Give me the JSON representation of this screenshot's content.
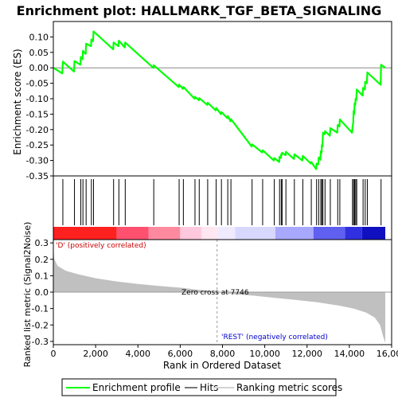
{
  "chart_data": {
    "type": "line",
    "title": "Enrichment plot: HALLMARK_TGF_BETA_SIGNALING",
    "ylabel_top": "Enrichment score (ES)",
    "ylabel_bottom": "Ranked list metric (Signal2Noise)",
    "xlabel": "Rank in Ordered Dataset",
    "xlim": [
      0,
      16000
    ],
    "x_ticks": [
      0,
      2000,
      4000,
      6000,
      8000,
      10000,
      12000,
      14000,
      16000
    ],
    "x_tick_labels": [
      "0",
      "2,000",
      "4,000",
      "6,000",
      "8,000",
      "10,000",
      "12,000",
      "14,000",
      "16,000"
    ],
    "es_ylim": [
      -0.35,
      0.15
    ],
    "es_ticks": [
      0.1,
      0.05,
      0.0,
      -0.05,
      -0.1,
      -0.15,
      -0.2,
      -0.25,
      -0.3,
      -0.35
    ],
    "es_tick_labels": [
      "0.10",
      "0.05",
      "0.00",
      "-0.05",
      "-0.10",
      "-0.15",
      "-0.20",
      "-0.25",
      "-0.30",
      "-0.35"
    ],
    "metric_ylim": [
      -0.32,
      0.32
    ],
    "metric_ticks": [
      0.3,
      0.2,
      0.1,
      0.0,
      -0.1,
      -0.2,
      -0.3
    ],
    "metric_tick_labels": [
      "0.3",
      "0.2",
      "0.1",
      "0.0",
      "-0.1",
      "-0.2",
      "-0.3"
    ],
    "hits": [
      450,
      1000,
      1300,
      1400,
      1550,
      1800,
      1900,
      2850,
      3100,
      3400,
      4750,
      5950,
      6150,
      6700,
      6900,
      7300,
      7700,
      7950,
      8250,
      8400,
      9400,
      9900,
      10450,
      10700,
      10780,
      10820,
      11000,
      11400,
      11800,
      12200,
      12450,
      12550,
      12650,
      12700,
      12750,
      12850,
      13100,
      13450,
      13550,
      14150,
      14200,
      14250,
      14300,
      14350,
      14650,
      14750,
      14850,
      15500
    ],
    "es_curve": [
      [
        0,
        0.0
      ],
      [
        420,
        -0.018
      ],
      [
        450,
        0.02
      ],
      [
        980,
        -0.012
      ],
      [
        1000,
        0.022
      ],
      [
        1280,
        0.01
      ],
      [
        1300,
        0.035
      ],
      [
        1380,
        0.028
      ],
      [
        1400,
        0.055
      ],
      [
        1530,
        0.045
      ],
      [
        1550,
        0.078
      ],
      [
        1780,
        0.07
      ],
      [
        1800,
        0.092
      ],
      [
        1880,
        0.086
      ],
      [
        1900,
        0.118
      ],
      [
        2830,
        0.06
      ],
      [
        2850,
        0.082
      ],
      [
        3080,
        0.07
      ],
      [
        3100,
        0.088
      ],
      [
        3380,
        0.066
      ],
      [
        3400,
        0.082
      ],
      [
        4730,
        0.0
      ],
      [
        4750,
        0.008
      ],
      [
        5930,
        -0.062
      ],
      [
        5950,
        -0.054
      ],
      [
        6130,
        -0.068
      ],
      [
        6150,
        -0.062
      ],
      [
        6680,
        -0.1
      ],
      [
        6700,
        -0.094
      ],
      [
        6880,
        -0.105
      ],
      [
        6900,
        -0.098
      ],
      [
        7280,
        -0.12
      ],
      [
        7300,
        -0.113
      ],
      [
        7680,
        -0.138
      ],
      [
        7700,
        -0.13
      ],
      [
        7930,
        -0.15
      ],
      [
        7950,
        -0.143
      ],
      [
        8230,
        -0.163
      ],
      [
        8250,
        -0.156
      ],
      [
        8380,
        -0.173
      ],
      [
        8400,
        -0.166
      ],
      [
        9380,
        -0.255
      ],
      [
        9400,
        -0.248
      ],
      [
        9880,
        -0.274
      ],
      [
        9900,
        -0.267
      ],
      [
        10430,
        -0.3
      ],
      [
        10450,
        -0.292
      ],
      [
        10680,
        -0.305
      ],
      [
        10700,
        -0.288
      ],
      [
        10760,
        -0.292
      ],
      [
        10780,
        -0.28
      ],
      [
        10800,
        -0.283
      ],
      [
        10820,
        -0.275
      ],
      [
        10980,
        -0.283
      ],
      [
        11000,
        -0.272
      ],
      [
        11380,
        -0.295
      ],
      [
        11400,
        -0.28
      ],
      [
        11780,
        -0.3
      ],
      [
        11800,
        -0.285
      ],
      [
        12180,
        -0.31
      ],
      [
        12200,
        -0.305
      ],
      [
        12430,
        -0.328
      ],
      [
        12450,
        -0.31
      ],
      [
        12530,
        -0.313
      ],
      [
        12550,
        -0.29
      ],
      [
        12630,
        -0.298
      ],
      [
        12650,
        -0.27
      ],
      [
        12690,
        -0.275
      ],
      [
        12700,
        -0.25
      ],
      [
        12730,
        -0.255
      ],
      [
        12750,
        -0.21
      ],
      [
        12830,
        -0.215
      ],
      [
        12850,
        -0.205
      ],
      [
        13080,
        -0.22
      ],
      [
        13100,
        -0.195
      ],
      [
        13430,
        -0.21
      ],
      [
        13450,
        -0.185
      ],
      [
        13530,
        -0.19
      ],
      [
        13550,
        -0.167
      ],
      [
        14130,
        -0.21
      ],
      [
        14150,
        -0.19
      ],
      [
        14180,
        -0.18
      ],
      [
        14200,
        -0.14
      ],
      [
        14230,
        -0.15
      ],
      [
        14250,
        -0.115
      ],
      [
        14280,
        -0.12
      ],
      [
        14300,
        -0.1
      ],
      [
        14330,
        -0.105
      ],
      [
        14350,
        -0.07
      ],
      [
        14630,
        -0.09
      ],
      [
        14650,
        -0.065
      ],
      [
        14730,
        -0.07
      ],
      [
        14750,
        -0.045
      ],
      [
        14830,
        -0.05
      ],
      [
        14850,
        -0.015
      ],
      [
        15480,
        -0.055
      ],
      [
        15500,
        0.01
      ],
      [
        15700,
        0.0
      ]
    ],
    "metric_curve": [
      [
        0,
        0.26
      ],
      [
        50,
        0.2
      ],
      [
        200,
        0.16
      ],
      [
        600,
        0.13
      ],
      [
        1200,
        0.108
      ],
      [
        2000,
        0.085
      ],
      [
        3000,
        0.065
      ],
      [
        4000,
        0.05
      ],
      [
        5000,
        0.038
      ],
      [
        6000,
        0.027
      ],
      [
        7000,
        0.012
      ],
      [
        7746,
        0.0
      ],
      [
        8500,
        -0.012
      ],
      [
        9500,
        -0.022
      ],
      [
        10500,
        -0.035
      ],
      [
        11500,
        -0.048
      ],
      [
        12500,
        -0.062
      ],
      [
        13500,
        -0.082
      ],
      [
        14200,
        -0.1
      ],
      [
        14800,
        -0.125
      ],
      [
        15200,
        -0.155
      ],
      [
        15450,
        -0.2
      ],
      [
        15600,
        -0.27
      ],
      [
        15700,
        -0.31
      ]
    ],
    "heat_blocks": [
      {
        "from": 0,
        "to": 3000,
        "color": "#ff2020"
      },
      {
        "from": 3000,
        "to": 4500,
        "color": "#ff5070"
      },
      {
        "from": 4500,
        "to": 6000,
        "color": "#ff8aa0"
      },
      {
        "from": 6000,
        "to": 7000,
        "color": "#ffc8dc"
      },
      {
        "from": 7000,
        "to": 7746,
        "color": "#ffe6f0"
      },
      {
        "from": 7746,
        "to": 8600,
        "color": "#f0eaff"
      },
      {
        "from": 8600,
        "to": 10500,
        "color": "#d8d8ff"
      },
      {
        "from": 10500,
        "to": 12300,
        "color": "#a8a8ff"
      },
      {
        "from": 12300,
        "to": 13800,
        "color": "#6060f0"
      },
      {
        "from": 13800,
        "to": 14600,
        "color": "#3030e0"
      },
      {
        "from": 14600,
        "to": 15700,
        "color": "#1010c0"
      }
    ],
    "zero_cross_rank": 7746,
    "zero_cross_label": "Zero cross at 7746",
    "pos_label": "'D' (positively correlated)",
    "neg_label": "'REST' (negatively correlated)",
    "legend": [
      {
        "label": "Enrichment profile",
        "color": "#00ff00"
      },
      {
        "label": "Hits",
        "color": "#000000"
      },
      {
        "label": "Ranking metric scores",
        "color": "#d3d3d3"
      }
    ],
    "colors": {
      "es": "#00ff00",
      "metric_fill": "#c0c0c0",
      "pos_label": "#cc0000",
      "neg_label": "#0000cc"
    }
  }
}
